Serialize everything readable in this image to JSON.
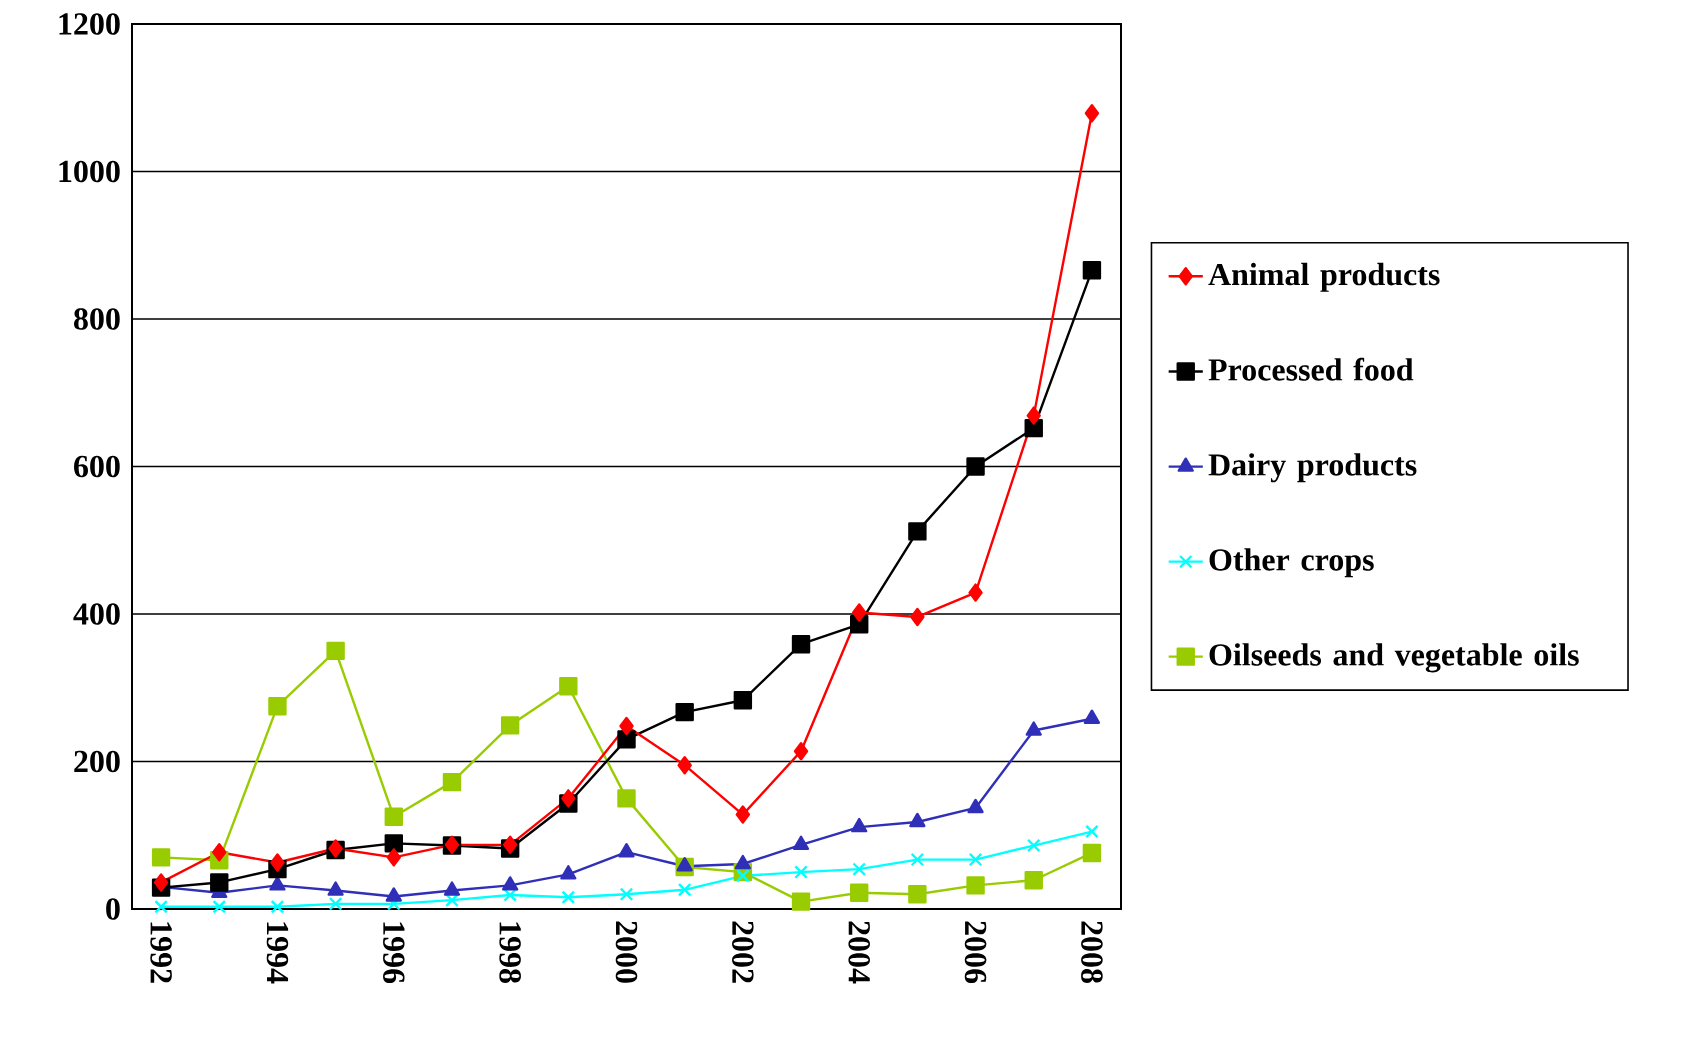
{
  "chart_data": {
    "type": "line",
    "x": [
      1992,
      1993,
      1994,
      1995,
      1996,
      1997,
      1998,
      1999,
      2000,
      2001,
      2002,
      2003,
      2004,
      2005,
      2006,
      2007,
      2008
    ],
    "series": [
      {
        "name": "Animal products",
        "color": "#ff0000",
        "marker": "diamond",
        "values": [
          36,
          77,
          63,
          82,
          70,
          87,
          87,
          150,
          248,
          195,
          128,
          214,
          402,
          396,
          429,
          669,
          1079
        ]
      },
      {
        "name": "Processed food",
        "color": "#000000",
        "marker": "square",
        "values": [
          29,
          36,
          54,
          80,
          89,
          86,
          82,
          143,
          230,
          267,
          283,
          359,
          386,
          512,
          600,
          652,
          866
        ]
      },
      {
        "name": "Dairy products",
        "color": "#2f2fb8",
        "marker": "triangle",
        "values": [
          30,
          22,
          32,
          25,
          17,
          25,
          32,
          47,
          77,
          58,
          61,
          87,
          111,
          118,
          137,
          242,
          258
        ]
      },
      {
        "name": "Other crops",
        "color": "#00ffff",
        "marker": "cross",
        "values": [
          3,
          3,
          3,
          7,
          7,
          12,
          19,
          16,
          20,
          26,
          45,
          50,
          54,
          67,
          67,
          86,
          105
        ]
      },
      {
        "name": "Oilseeds and vegetable oils",
        "color": "#99cc00",
        "marker": "square",
        "values": [
          70,
          66,
          275,
          350,
          125,
          172,
          249,
          302,
          150,
          57,
          50,
          10,
          22,
          20,
          32,
          39,
          76
        ]
      }
    ],
    "xlim": [
      1991.5,
      2008.5
    ],
    "xticks": [
      1992,
      1994,
      1996,
      1998,
      2000,
      2002,
      2004,
      2006,
      2008
    ],
    "ylim": [
      0,
      1200
    ],
    "yticks": [
      0,
      200,
      400,
      600,
      800,
      1000,
      1200
    ],
    "grid": "y",
    "legend": "right",
    "line_style": "solid"
  }
}
